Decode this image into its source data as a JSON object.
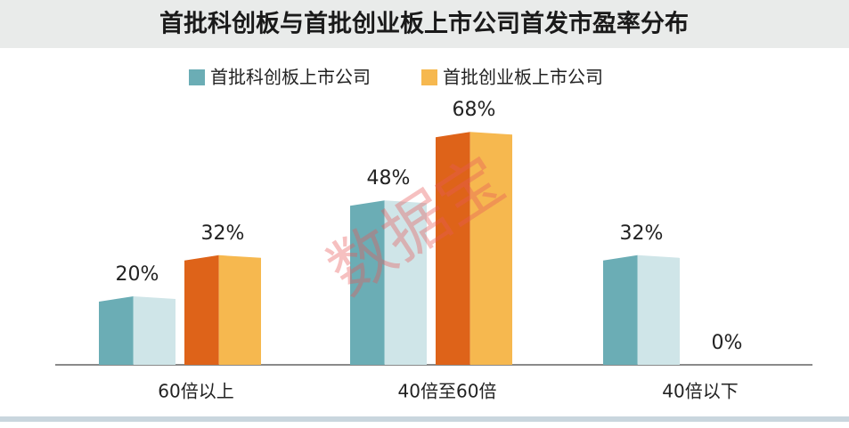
{
  "chart_data": {
    "type": "bar",
    "title": "首批科创板与首批创业板上市公司首发市盈率分布",
    "categories": [
      "60倍以上",
      "40倍至60倍",
      "40倍以下"
    ],
    "series": [
      {
        "name": "首批科创板上市公司",
        "color": "#6badb5",
        "face_colors": [
          "#6badb5",
          "#cfe5e8"
        ],
        "values": [
          20,
          48,
          32
        ],
        "value_labels": [
          "20%",
          "48%",
          "32%"
        ]
      },
      {
        "name": "首批创业板上市公司",
        "color": "#f6b84f",
        "face_colors": [
          "#de6319",
          "#f6b84f"
        ],
        "values": [
          32,
          68,
          0
        ],
        "value_labels": [
          "32%",
          "68%",
          "0%"
        ]
      }
    ],
    "watermark": "数据宝"
  }
}
